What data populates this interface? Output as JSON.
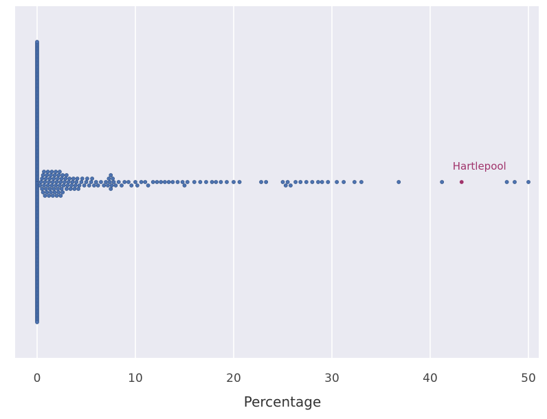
{
  "chart_data": {
    "type": "swarm",
    "xlabel": "Percentage",
    "xlim": [
      -2,
      51
    ],
    "x_ticks": [
      0,
      10,
      20,
      30,
      40,
      50
    ],
    "grid": true,
    "legend": "none",
    "colors": {
      "background": "#eaeaf2",
      "grid": "#ffffff",
      "point": "#4c72b0",
      "point_edge": "#2f4f7f",
      "highlight": "#a0336b"
    },
    "zero_count": 205,
    "nonzero_values": [
      0.3,
      0.4,
      0.5,
      0.5,
      0.6,
      0.6,
      0.7,
      0.7,
      0.8,
      0.8,
      0.9,
      0.9,
      1.0,
      1.0,
      1.1,
      1.1,
      1.2,
      1.2,
      1.3,
      1.3,
      1.4,
      1.4,
      1.5,
      1.5,
      1.6,
      1.6,
      1.7,
      1.7,
      1.8,
      1.8,
      1.9,
      1.9,
      2.0,
      2.0,
      2.1,
      2.1,
      2.2,
      2.2,
      2.3,
      2.3,
      2.4,
      2.4,
      2.5,
      2.5,
      2.6,
      2.6,
      2.7,
      2.8,
      2.9,
      3.0,
      3.0,
      3.1,
      3.2,
      3.3,
      3.4,
      3.5,
      3.6,
      3.7,
      3.8,
      3.9,
      4.0,
      4.1,
      4.2,
      4.3,
      4.5,
      4.6,
      4.8,
      5.0,
      5.1,
      5.3,
      5.5,
      5.6,
      5.8,
      6.0,
      6.2,
      6.5,
      6.8,
      7.0,
      7.2,
      7.3,
      7.4,
      7.5,
      7.5,
      7.6,
      7.7,
      7.8,
      8.0,
      8.3,
      8.6,
      8.9,
      9.3,
      9.6,
      10.0,
      10.2,
      10.6,
      11.0,
      11.3,
      11.8,
      12.2,
      12.6,
      13.0,
      13.4,
      13.8,
      14.3,
      14.8,
      15.0,
      15.3,
      16.0,
      16.6,
      17.2,
      17.8,
      18.2,
      18.7,
      19.3,
      20.0,
      20.6,
      22.8,
      23.3,
      25.0,
      25.3,
      25.5,
      25.8,
      26.3,
      26.8,
      27.4,
      28.0,
      28.6,
      29.0,
      29.6,
      30.5,
      31.2,
      32.3,
      33.0,
      36.8,
      41.2,
      47.8,
      48.6,
      50.0
    ],
    "highlight": {
      "label": "Hartlepool",
      "value": 43.2
    }
  }
}
